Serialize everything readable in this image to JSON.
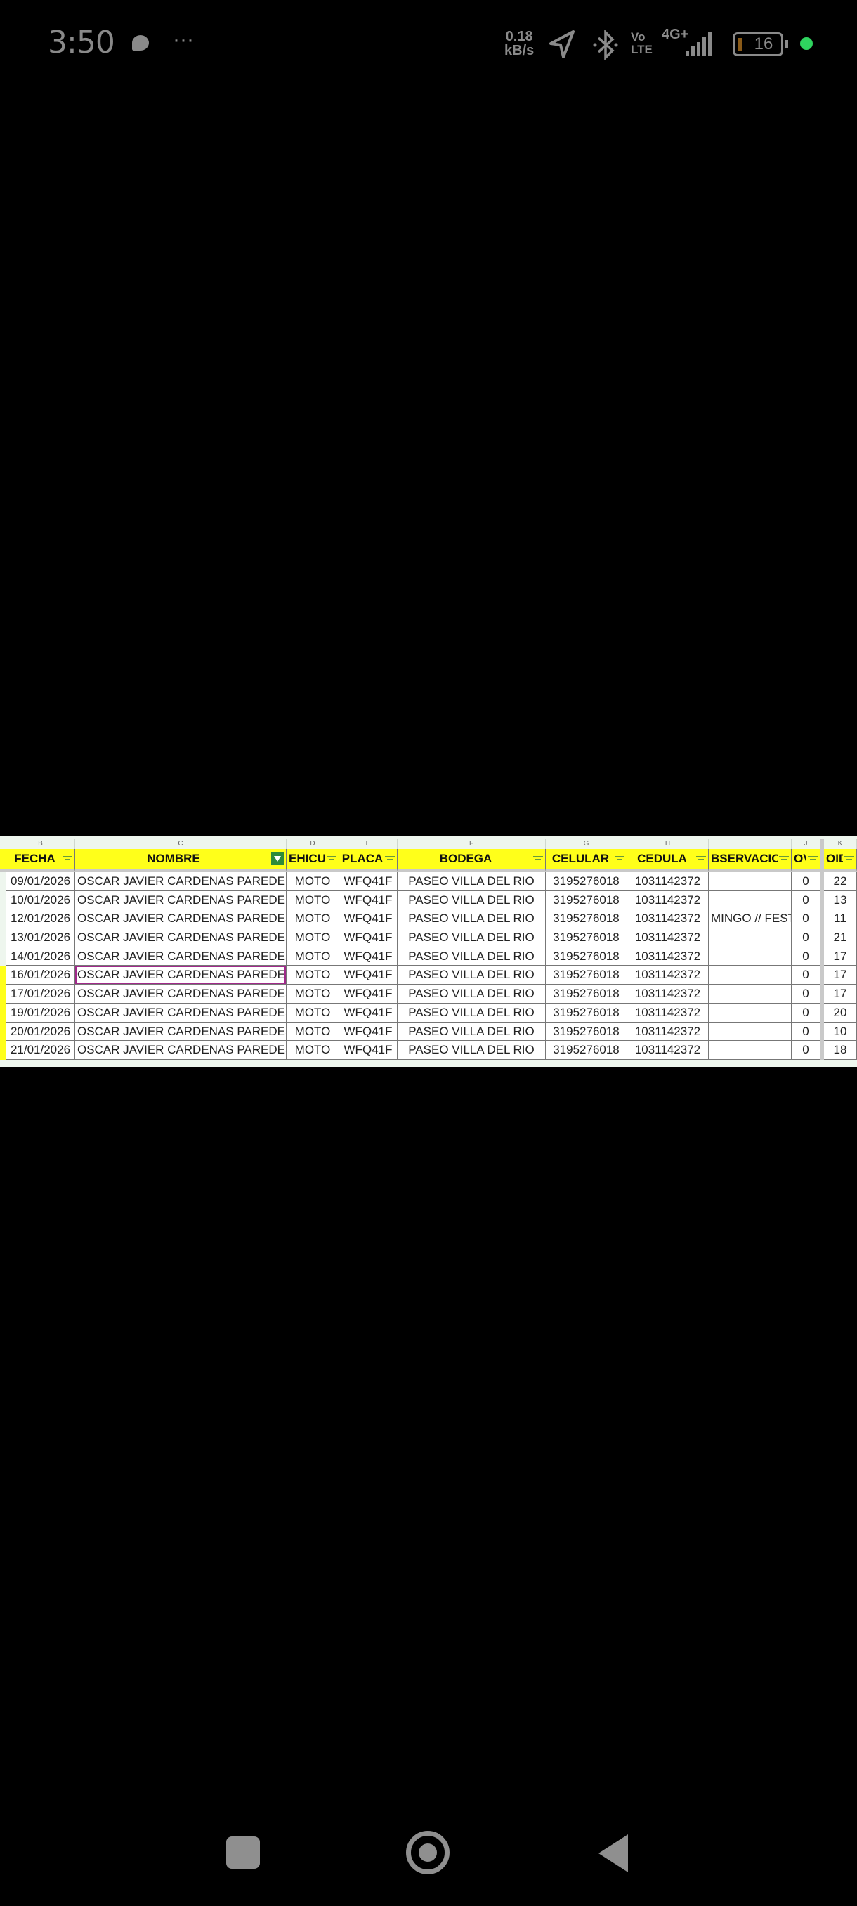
{
  "status_bar": {
    "time": "3:50",
    "more": "···",
    "speed_value": "0.18",
    "speed_unit": "kB/s",
    "volte_top": "Vo",
    "volte_bottom": "LTE",
    "network": "4G+",
    "battery": "16",
    "battery_color": "#8a5a18",
    "dot_color": "#2fd45f"
  },
  "sheet": {
    "column_letters": [
      "",
      "B",
      "C",
      "D",
      "E",
      "F",
      "G",
      "H",
      "I",
      "J",
      "K"
    ],
    "headers": [
      "",
      "FECHA",
      "NOMBRE",
      "EHICUL",
      "PLACA",
      "BODEGA",
      "CELULAR",
      "CEDULA",
      "BSERVACIC",
      "OV",
      "OID"
    ],
    "header_color": "#ffff1a",
    "rows": [
      [
        "09/01/2026",
        "OSCAR JAVIER CARDENAS PAREDES",
        "MOTO",
        "WFQ41F",
        "PASEO VILLA DEL RIO",
        "3195276018",
        "1031142372",
        "",
        "0",
        "22"
      ],
      [
        "10/01/2026",
        "OSCAR JAVIER CARDENAS PAREDES",
        "MOTO",
        "WFQ41F",
        "PASEO VILLA DEL RIO",
        "3195276018",
        "1031142372",
        "",
        "0",
        "13"
      ],
      [
        "12/01/2026",
        "OSCAR JAVIER CARDENAS PAREDES",
        "MOTO",
        "WFQ41F",
        "PASEO VILLA DEL RIO",
        "3195276018",
        "1031142372",
        "MINGO // FESTI",
        "0",
        "11"
      ],
      [
        "13/01/2026",
        "OSCAR JAVIER CARDENAS PAREDES",
        "MOTO",
        "WFQ41F",
        "PASEO VILLA DEL RIO",
        "3195276018",
        "1031142372",
        "",
        "0",
        "21"
      ],
      [
        "14/01/2026",
        "OSCAR JAVIER CARDENAS PAREDES",
        "MOTO",
        "WFQ41F",
        "PASEO VILLA DEL RIO",
        "3195276018",
        "1031142372",
        "",
        "0",
        "17"
      ],
      [
        "16/01/2026",
        "OSCAR JAVIER CARDENAS PAREDES",
        "MOTO",
        "WFQ41F",
        "PASEO VILLA DEL RIO",
        "3195276018",
        "1031142372",
        "",
        "0",
        "17"
      ],
      [
        "17/01/2026",
        "OSCAR JAVIER CARDENAS PAREDES",
        "MOTO",
        "WFQ41F",
        "PASEO VILLA DEL RIO",
        "3195276018",
        "1031142372",
        "",
        "0",
        "17"
      ],
      [
        "19/01/2026",
        "OSCAR JAVIER CARDENAS PAREDES",
        "MOTO",
        "WFQ41F",
        "PASEO VILLA DEL RIO",
        "3195276018",
        "1031142372",
        "",
        "0",
        "20"
      ],
      [
        "20/01/2026",
        "OSCAR JAVIER CARDENAS PAREDES",
        "MOTO",
        "WFQ41F",
        "PASEO VILLA DEL RIO",
        "3195276018",
        "1031142372",
        "",
        "0",
        "10"
      ],
      [
        "21/01/2026",
        "OSCAR JAVIER CARDENAS PAREDES",
        "MOTO",
        "WFQ41F",
        "PASEO VILLA DEL RIO",
        "3195276018",
        "1031142372",
        "",
        "0",
        "18"
      ]
    ]
  }
}
